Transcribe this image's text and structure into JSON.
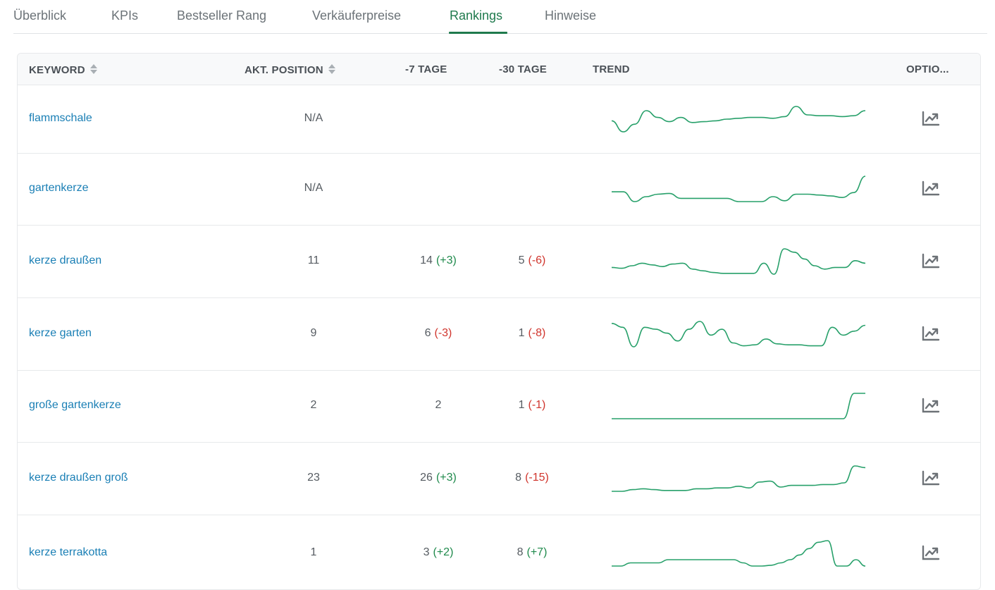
{
  "tabs": [
    {
      "label": "Überblick",
      "active": false
    },
    {
      "label": "KPIs",
      "active": false
    },
    {
      "label": "Bestseller Rang",
      "active": false
    },
    {
      "label": "Verkäuferpreise",
      "active": false
    },
    {
      "label": "Rankings",
      "active": true
    },
    {
      "label": "Hinweise",
      "active": false
    }
  ],
  "table": {
    "headers": {
      "keyword": "KEYWORD",
      "position": "AKT. POSITION",
      "d7": "-7 TAGE",
      "d30": "-30 TAGE",
      "trend": "TREND",
      "options": "OPTIO..."
    },
    "rows": [
      {
        "keyword": "flammschale",
        "position": "N/A",
        "d7": "",
        "d7_delta": "",
        "d7_dir": "",
        "d30": "",
        "d30_delta": "",
        "d30_dir": "",
        "trend_icon": "trend-chart-icon",
        "trend": [
          16,
          3,
          12,
          28,
          20,
          15,
          20,
          14,
          15,
          16,
          18,
          19,
          20,
          20,
          19,
          21,
          33,
          23,
          22,
          22,
          21,
          22,
          28
        ]
      },
      {
        "keyword": "gartenkerze",
        "position": "N/A",
        "d7": "",
        "d7_delta": "",
        "d7_dir": "",
        "d30": "",
        "d30_delta": "",
        "d30_dir": "",
        "trend_icon": "trend-chart-icon",
        "trend": [
          16,
          16,
          4,
          10,
          13,
          14,
          8,
          8,
          8,
          8,
          8,
          4,
          4,
          4,
          10,
          5,
          13,
          13,
          12,
          11,
          9,
          15,
          35
        ]
      },
      {
        "keyword": "kerze draußen",
        "position": "11",
        "d7": "14",
        "d7_delta": "(+3)",
        "d7_dir": "pos",
        "d30": "5",
        "d30_delta": "(-6)",
        "d30_dir": "neg",
        "trend_icon": "trend-chart-icon",
        "trend": [
          10,
          9,
          12,
          15,
          13,
          11,
          14,
          15,
          8,
          6,
          4,
          3,
          3,
          3,
          3,
          15,
          2,
          32,
          28,
          20,
          12,
          8,
          10,
          10,
          18,
          15
        ]
      },
      {
        "keyword": "kerze garten",
        "position": "9",
        "d7": "6",
        "d7_delta": "(-3)",
        "d7_dir": "neg",
        "d30": "1",
        "d30_delta": "(-8)",
        "d30_dir": "neg",
        "trend_icon": "trend-chart-icon",
        "trend": [
          26,
          22,
          2,
          22,
          20,
          16,
          8,
          20,
          28,
          14,
          20,
          6,
          3,
          4,
          10,
          5,
          4,
          4,
          3,
          3,
          22,
          14,
          18,
          24
        ]
      },
      {
        "keyword": "große gartenkerze",
        "position": "2",
        "d7": "2",
        "d7_delta": "",
        "d7_dir": "",
        "d30": "1",
        "d30_delta": "(-1)",
        "d30_dir": "neg",
        "trend_icon": "trend-chart-icon",
        "trend": [
          0,
          0,
          0,
          0,
          0,
          0,
          0,
          0,
          0,
          0,
          0,
          0,
          0,
          0,
          0,
          0,
          0,
          0,
          0,
          0,
          0,
          0,
          32,
          32
        ]
      },
      {
        "keyword": "kerze draußen groß",
        "position": "23",
        "d7": "26",
        "d7_delta": "(+3)",
        "d7_dir": "pos",
        "d30": "8",
        "d30_delta": "(-15)",
        "d30_dir": "neg",
        "trend_icon": "trend-chart-icon",
        "trend": [
          0,
          0,
          2,
          3,
          2,
          1,
          1,
          1,
          3,
          3,
          4,
          4,
          6,
          4,
          11,
          12,
          5,
          7,
          7,
          7,
          8,
          8,
          10,
          30,
          28
        ]
      },
      {
        "keyword": "kerze terrakotta",
        "position": "1",
        "d7": "3",
        "d7_delta": "(+2)",
        "d7_dir": "pos",
        "d30": "8",
        "d30_delta": "(+7)",
        "d30_dir": "pos",
        "trend_icon": "trend-chart-icon",
        "trend": [
          0,
          0,
          4,
          4,
          4,
          4,
          8,
          8,
          8,
          8,
          8,
          8,
          8,
          8,
          4,
          0,
          0,
          1,
          4,
          8,
          14,
          22,
          30,
          32,
          0,
          0,
          8,
          0
        ]
      }
    ]
  },
  "colors": {
    "accent": "#1f7a4d",
    "link": "#1a7fb5",
    "positive": "#1f8a4c",
    "negative": "#d0342c",
    "sparkline": "#27a06a"
  }
}
